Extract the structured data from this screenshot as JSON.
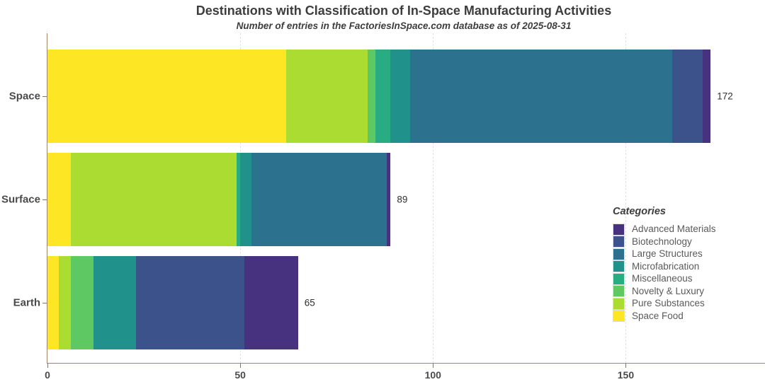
{
  "title": "Destinations with Classification of In-Space Manufacturing Activities",
  "subtitle": "Number of entries in the FactoriesInSpace.com database as of 2025-08-31",
  "legend": {
    "title": "Categories",
    "items": [
      {
        "label": "Advanced Materials",
        "color": "#46327e"
      },
      {
        "label": "Biotechnology",
        "color": "#3b528b"
      },
      {
        "label": "Large Structures",
        "color": "#2c728e"
      },
      {
        "label": "Microfabrication",
        "color": "#21918c"
      },
      {
        "label": "Miscellaneous",
        "color": "#27ad81"
      },
      {
        "label": "Novelty & Luxury",
        "color": "#5ec962"
      },
      {
        "label": "Pure Substances",
        "color": "#aadc32"
      },
      {
        "label": "Space Food",
        "color": "#fde725"
      }
    ]
  },
  "chart_data": {
    "type": "bar",
    "orientation": "horizontal",
    "stacked": true,
    "title": "Destinations with Classification of In-Space Manufacturing Activities",
    "subtitle": "Number of entries in the FactoriesInSpace.com database as of 2025-08-31",
    "categories": [
      "Space",
      "Surface",
      "Earth"
    ],
    "totals": [
      172,
      89,
      65
    ],
    "series": [
      {
        "name": "Space Food",
        "color": "#fde725",
        "values": [
          62,
          6,
          3
        ]
      },
      {
        "name": "Pure Substances",
        "color": "#aadc32",
        "values": [
          21,
          43,
          3
        ]
      },
      {
        "name": "Novelty & Luxury",
        "color": "#5ec962",
        "values": [
          2,
          0,
          6
        ]
      },
      {
        "name": "Miscellaneous",
        "color": "#27ad81",
        "values": [
          4,
          1,
          0
        ]
      },
      {
        "name": "Microfabrication",
        "color": "#21918c",
        "values": [
          5,
          3,
          11
        ]
      },
      {
        "name": "Large Structures",
        "color": "#2c728e",
        "values": [
          68,
          35,
          0
        ]
      },
      {
        "name": "Biotechnology",
        "color": "#3b528b",
        "values": [
          8,
          0,
          28
        ]
      },
      {
        "name": "Advanced Materials",
        "color": "#46327e",
        "values": [
          2,
          1,
          14
        ]
      }
    ],
    "xticks": [
      0,
      50,
      100,
      150
    ],
    "xlim": [
      0,
      186
    ],
    "grid": "dashed-vertical",
    "legend_position": "right-inside"
  }
}
